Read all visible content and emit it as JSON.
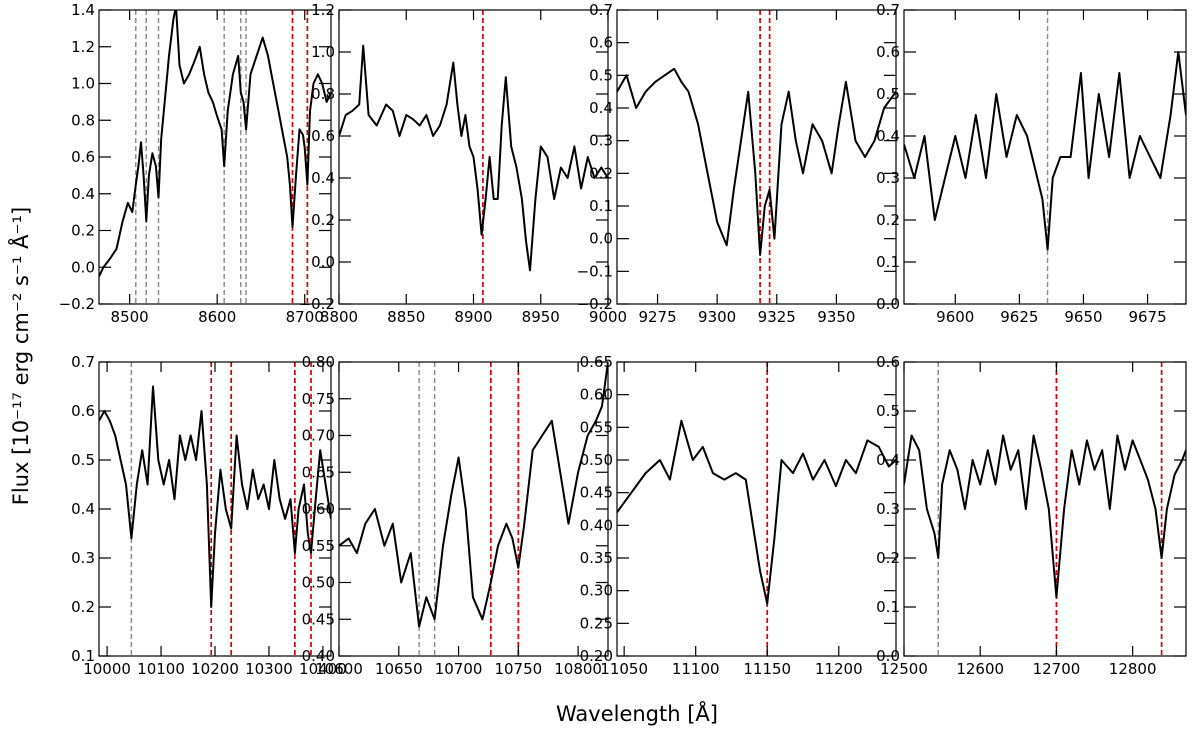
{
  "figure": {
    "xlabel": "Wavelength [Å]",
    "ylabel": "Flux [10⁻¹⁷ erg cm⁻² s⁻¹ Å⁻¹]"
  },
  "colors": {
    "line": "#000000",
    "red_marker": "#dd0000",
    "gray_marker": "#888888"
  },
  "chart_data": [
    {
      "type": "line",
      "xlim": [
        8465,
        8730
      ],
      "ylim": [
        -0.2,
        1.4
      ],
      "xticks": [
        8500,
        8600,
        8700
      ],
      "yticks": [
        -0.2,
        0.0,
        0.2,
        0.4,
        0.6,
        0.8,
        1.0,
        1.2,
        1.4
      ],
      "ytick_labels": [
        "−0.2",
        "0.0",
        "0.2",
        "0.4",
        "0.6",
        "0.8",
        "1.0",
        "1.2",
        "1.4"
      ],
      "red_lines": [
        8686,
        8703
      ],
      "gray_lines": [
        8507,
        8519,
        8533,
        8608,
        8627,
        8633
      ],
      "series": [
        {
          "x": [
            8465,
            8470,
            8478,
            8485,
            8492,
            8498,
            8503,
            8507,
            8510,
            8513,
            8516,
            8519,
            8522,
            8526,
            8530,
            8533,
            8536,
            8540,
            8545,
            8550,
            8553,
            8557,
            8562,
            8568,
            8574,
            8580,
            8585,
            8590,
            8595,
            8600,
            8605,
            8608,
            8612,
            8618,
            8624,
            8627,
            8630,
            8633,
            8638,
            8645,
            8652,
            8658,
            8664,
            8670,
            8676,
            8680,
            8683,
            8686,
            8690,
            8694,
            8698,
            8700,
            8703,
            8706,
            8710,
            8715,
            8720,
            8725,
            8730
          ],
          "y": [
            -0.05,
            0.0,
            0.05,
            0.1,
            0.25,
            0.35,
            0.3,
            0.45,
            0.55,
            0.68,
            0.5,
            0.25,
            0.5,
            0.62,
            0.55,
            0.38,
            0.7,
            0.9,
            1.15,
            1.35,
            1.42,
            1.1,
            1.0,
            1.05,
            1.12,
            1.2,
            1.05,
            0.95,
            0.9,
            0.82,
            0.75,
            0.55,
            0.85,
            1.05,
            1.15,
            0.95,
            0.9,
            0.75,
            1.05,
            1.15,
            1.25,
            1.15,
            1.0,
            0.85,
            0.7,
            0.6,
            0.45,
            0.22,
            0.5,
            0.75,
            0.72,
            0.65,
            0.45,
            0.85,
            1.0,
            1.05,
            1.0,
            0.9,
            0.95
          ]
        }
      ]
    },
    {
      "type": "line",
      "xlim": [
        8800,
        9000
      ],
      "ylim": [
        -0.2,
        1.2
      ],
      "xticks": [
        8800,
        8850,
        8900,
        8950,
        9000
      ],
      "yticks": [
        -0.2,
        0.0,
        0.2,
        0.4,
        0.6,
        0.8,
        1.0,
        1.2
      ],
      "ytick_labels": [
        "−0.2",
        "0.0",
        "0.2",
        "0.4",
        "0.6",
        "0.8",
        "1.0",
        "1.2"
      ],
      "red_lines": [
        8907
      ],
      "gray_lines": [],
      "series": [
        {
          "x": [
            8800,
            8805,
            8810,
            8815,
            8818,
            8822,
            8828,
            8835,
            8840,
            8845,
            8850,
            8855,
            8860,
            8865,
            8870,
            8875,
            8880,
            8885,
            8888,
            8891,
            8894,
            8897,
            8900,
            8903,
            8906,
            8909,
            8912,
            8915,
            8918,
            8921,
            8924,
            8928,
            8932,
            8936,
            8939,
            8942,
            8946,
            8950,
            8955,
            8960,
            8965,
            8970,
            8975,
            8980,
            8985,
            8990,
            8995,
            9000
          ],
          "y": [
            0.6,
            0.7,
            0.72,
            0.75,
            1.03,
            0.7,
            0.65,
            0.75,
            0.72,
            0.6,
            0.7,
            0.68,
            0.65,
            0.7,
            0.6,
            0.65,
            0.75,
            0.95,
            0.75,
            0.6,
            0.7,
            0.55,
            0.5,
            0.35,
            0.13,
            0.3,
            0.5,
            0.3,
            0.3,
            0.65,
            0.88,
            0.55,
            0.45,
            0.3,
            0.1,
            -0.04,
            0.3,
            0.55,
            0.5,
            0.3,
            0.45,
            0.4,
            0.55,
            0.35,
            0.5,
            0.4,
            0.45,
            0.4
          ]
        }
      ]
    },
    {
      "type": "line",
      "xlim": [
        9258,
        9375
      ],
      "ylim": [
        -0.2,
        0.7
      ],
      "xticks": [
        9275,
        9300,
        9325,
        9350
      ],
      "yticks": [
        -0.2,
        -0.1,
        0.0,
        0.1,
        0.2,
        0.3,
        0.4,
        0.5,
        0.6,
        0.7
      ],
      "ytick_labels": [
        "−0.2",
        "−0.1",
        "0.0",
        "0.1",
        "0.2",
        "0.3",
        "0.4",
        "0.5",
        "0.6",
        "0.7"
      ],
      "red_lines": [
        9318,
        9322
      ],
      "gray_lines": [],
      "series": [
        {
          "x": [
            9258,
            9262,
            9266,
            9270,
            9274,
            9278,
            9282,
            9285,
            9288,
            9292,
            9296,
            9300,
            9304,
            9307,
            9310,
            9313,
            9316,
            9318,
            9320,
            9322,
            9324,
            9327,
            9330,
            9333,
            9336,
            9340,
            9344,
            9348,
            9351,
            9354,
            9358,
            9362,
            9366,
            9370,
            9375
          ],
          "y": [
            0.45,
            0.5,
            0.4,
            0.45,
            0.48,
            0.5,
            0.52,
            0.48,
            0.45,
            0.35,
            0.2,
            0.05,
            -0.02,
            0.15,
            0.3,
            0.45,
            0.2,
            -0.05,
            0.1,
            0.15,
            0.0,
            0.35,
            0.45,
            0.3,
            0.2,
            0.35,
            0.3,
            0.2,
            0.35,
            0.48,
            0.3,
            0.25,
            0.3,
            0.4,
            0.45
          ]
        }
      ]
    },
    {
      "type": "line",
      "xlim": [
        9580,
        9690
      ],
      "ylim": [
        0.0,
        0.7
      ],
      "xticks": [
        9600,
        9625,
        9650,
        9675
      ],
      "yticks": [
        0.0,
        0.1,
        0.2,
        0.3,
        0.4,
        0.5,
        0.6,
        0.7
      ],
      "ytick_labels": [
        "0.0",
        "0.1",
        "0.2",
        "0.3",
        "0.4",
        "0.5",
        "0.6",
        "0.7"
      ],
      "red_lines": [],
      "gray_lines": [
        9636
      ],
      "series": [
        {
          "x": [
            9580,
            9584,
            9588,
            9592,
            9596,
            9600,
            9604,
            9608,
            9612,
            9616,
            9620,
            9624,
            9628,
            9632,
            9634,
            9636,
            9638,
            9641,
            9645,
            9649,
            9652,
            9656,
            9660,
            9664,
            9668,
            9672,
            9676,
            9680,
            9684,
            9687,
            9690
          ],
          "y": [
            0.38,
            0.3,
            0.4,
            0.2,
            0.3,
            0.4,
            0.3,
            0.45,
            0.3,
            0.5,
            0.35,
            0.45,
            0.4,
            0.3,
            0.25,
            0.13,
            0.3,
            0.35,
            0.35,
            0.55,
            0.3,
            0.5,
            0.35,
            0.55,
            0.3,
            0.4,
            0.35,
            0.3,
            0.45,
            0.6,
            0.45
          ]
        }
      ]
    },
    {
      "type": "line",
      "xlim": [
        9985,
        10415
      ],
      "ylim": [
        0.1,
        0.7
      ],
      "xticks": [
        10000,
        10100,
        10200,
        10300,
        10400
      ],
      "yticks": [
        0.1,
        0.2,
        0.3,
        0.4,
        0.5,
        0.6,
        0.7
      ],
      "ytick_labels": [
        "0.1",
        "0.2",
        "0.3",
        "0.4",
        "0.5",
        "0.6",
        "0.7"
      ],
      "red_lines": [
        10193,
        10230,
        10348,
        10378
      ],
      "gray_lines": [
        10045
      ],
      "series": [
        {
          "x": [
            9985,
            9995,
            10005,
            10015,
            10025,
            10035,
            10045,
            10055,
            10065,
            10075,
            10085,
            10095,
            10105,
            10115,
            10125,
            10135,
            10145,
            10155,
            10165,
            10175,
            10185,
            10193,
            10200,
            10210,
            10220,
            10230,
            10240,
            10250,
            10260,
            10270,
            10280,
            10290,
            10300,
            10310,
            10320,
            10330,
            10340,
            10348,
            10355,
            10365,
            10372,
            10378,
            10385,
            10395,
            10405,
            10415
          ],
          "y": [
            0.58,
            0.6,
            0.58,
            0.55,
            0.5,
            0.45,
            0.34,
            0.45,
            0.52,
            0.45,
            0.65,
            0.5,
            0.45,
            0.5,
            0.42,
            0.55,
            0.5,
            0.55,
            0.5,
            0.6,
            0.45,
            0.2,
            0.35,
            0.48,
            0.4,
            0.36,
            0.55,
            0.45,
            0.4,
            0.48,
            0.42,
            0.45,
            0.4,
            0.5,
            0.42,
            0.38,
            0.42,
            0.31,
            0.4,
            0.45,
            0.35,
            0.31,
            0.4,
            0.52,
            0.45,
            0.38
          ]
        }
      ]
    },
    {
      "type": "line",
      "xlim": [
        10600,
        10825
      ],
      "ylim": [
        0.4,
        0.8
      ],
      "xticks": [
        10600,
        10650,
        10700,
        10750,
        10800
      ],
      "yticks": [
        0.4,
        0.45,
        0.5,
        0.55,
        0.6,
        0.65,
        0.7,
        0.75,
        0.8
      ],
      "ytick_labels": [
        "0.40",
        "0.45",
        "0.50",
        "0.55",
        "0.60",
        "0.65",
        "0.70",
        "0.75",
        "0.80"
      ],
      "red_lines": [
        10727,
        10750
      ],
      "gray_lines": [
        10667,
        10680
      ],
      "series": [
        {
          "x": [
            10600,
            10608,
            10615,
            10622,
            10630,
            10638,
            10645,
            10652,
            10660,
            10667,
            10673,
            10680,
            10687,
            10694,
            10700,
            10706,
            10712,
            10720,
            10727,
            10733,
            10740,
            10745,
            10750,
            10755,
            10762,
            10770,
            10778,
            10785,
            10792,
            10800,
            10808,
            10815,
            10820,
            10825
          ],
          "y": [
            0.55,
            0.56,
            0.54,
            0.58,
            0.6,
            0.55,
            0.58,
            0.5,
            0.54,
            0.44,
            0.48,
            0.45,
            0.55,
            0.62,
            0.67,
            0.6,
            0.48,
            0.45,
            0.5,
            0.55,
            0.58,
            0.56,
            0.52,
            0.58,
            0.68,
            0.7,
            0.72,
            0.65,
            0.58,
            0.65,
            0.7,
            0.72,
            0.74,
            0.8
          ]
        }
      ]
    },
    {
      "type": "line",
      "xlim": [
        11045,
        11240
      ],
      "ylim": [
        0.2,
        0.65
      ],
      "xticks": [
        11050,
        11100,
        11150,
        11200
      ],
      "yticks": [
        0.2,
        0.25,
        0.3,
        0.35,
        0.4,
        0.45,
        0.5,
        0.55,
        0.6,
        0.65
      ],
      "ytick_labels": [
        "0.20",
        "0.25",
        "0.30",
        "0.35",
        "0.40",
        "0.45",
        "0.50",
        "0.55",
        "0.60",
        "0.65"
      ],
      "red_lines": [
        11150
      ],
      "gray_lines": [],
      "series": [
        {
          "x": [
            11045,
            11055,
            11065,
            11075,
            11082,
            11090,
            11098,
            11105,
            11112,
            11120,
            11128,
            11135,
            11140,
            11145,
            11150,
            11155,
            11160,
            11168,
            11175,
            11182,
            11190,
            11198,
            11205,
            11212,
            11220,
            11228,
            11235,
            11240
          ],
          "y": [
            0.42,
            0.45,
            0.48,
            0.5,
            0.47,
            0.56,
            0.5,
            0.52,
            0.48,
            0.47,
            0.48,
            0.47,
            0.4,
            0.33,
            0.28,
            0.38,
            0.5,
            0.48,
            0.51,
            0.47,
            0.5,
            0.46,
            0.5,
            0.48,
            0.53,
            0.52,
            0.49,
            0.5
          ]
        }
      ]
    },
    {
      "type": "line",
      "xlim": [
        12500,
        12870
      ],
      "ylim": [
        0.0,
        0.6
      ],
      "xticks": [
        12500,
        12600,
        12700,
        12800
      ],
      "yticks": [
        0.0,
        0.1,
        0.2,
        0.3,
        0.4,
        0.5,
        0.6
      ],
      "ytick_labels": [
        "0.0",
        "0.1",
        "0.2",
        "0.3",
        "0.4",
        "0.5",
        "0.6"
      ],
      "red_lines": [
        12700,
        12838
      ],
      "gray_lines": [
        12545
      ],
      "series": [
        {
          "x": [
            12500,
            12510,
            12520,
            12530,
            12540,
            12545,
            12550,
            12560,
            12570,
            12580,
            12590,
            12600,
            12610,
            12620,
            12630,
            12640,
            12650,
            12660,
            12670,
            12680,
            12690,
            12700,
            12710,
            12720,
            12730,
            12740,
            12750,
            12760,
            12770,
            12780,
            12790,
            12800,
            12810,
            12820,
            12830,
            12838,
            12845,
            12855,
            12865,
            12870
          ],
          "y": [
            0.35,
            0.45,
            0.42,
            0.3,
            0.25,
            0.2,
            0.35,
            0.42,
            0.38,
            0.3,
            0.4,
            0.35,
            0.42,
            0.35,
            0.45,
            0.38,
            0.42,
            0.3,
            0.45,
            0.38,
            0.3,
            0.12,
            0.3,
            0.42,
            0.35,
            0.44,
            0.38,
            0.42,
            0.3,
            0.45,
            0.38,
            0.44,
            0.4,
            0.36,
            0.3,
            0.2,
            0.3,
            0.37,
            0.4,
            0.42
          ]
        }
      ]
    }
  ]
}
